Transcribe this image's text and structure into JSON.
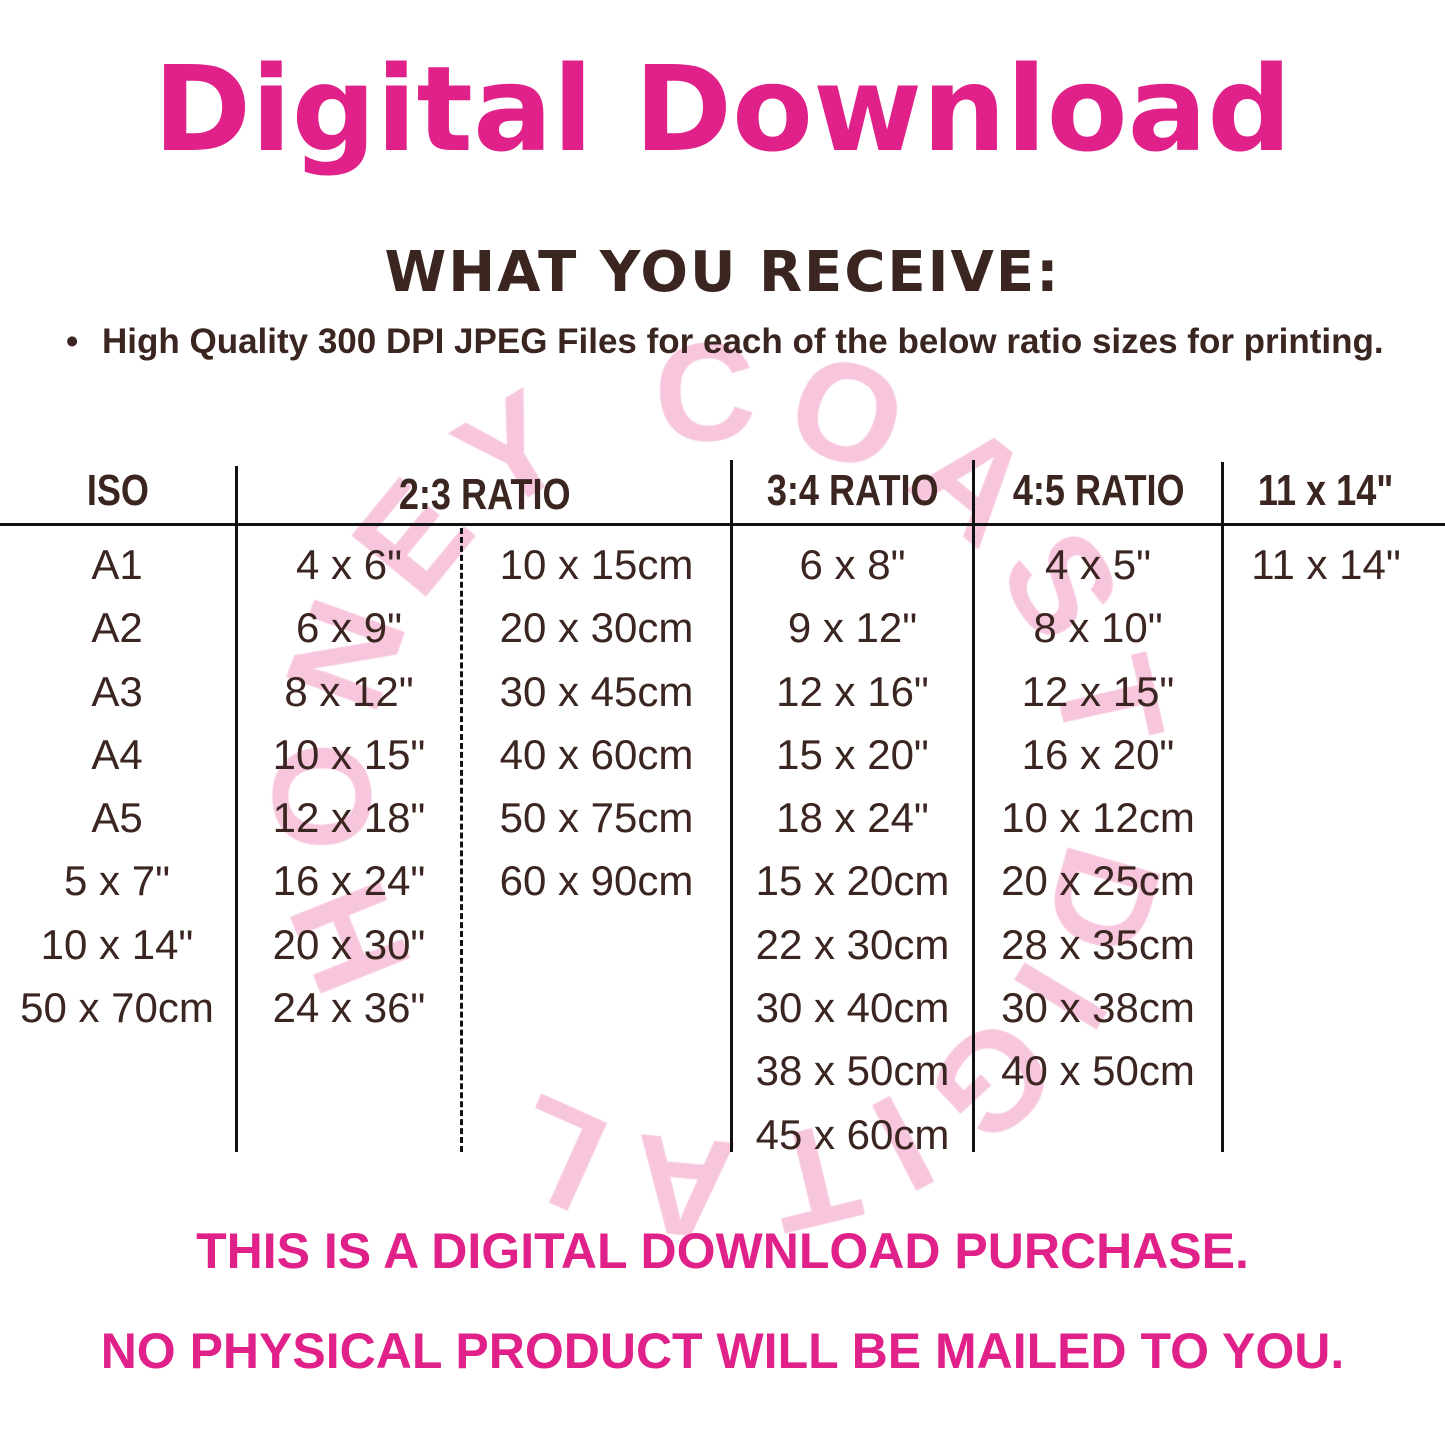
{
  "title": "Digital Download",
  "subtitle": "WHAT YOU RECEIVE:",
  "bullet": {
    "marker": "•",
    "text": "High Quality 300 DPI JPEG Files for each of the below ratio sizes for printing."
  },
  "watermark": {
    "text": "HONEY COAST DIGITAL",
    "color": "#f7c6dd"
  },
  "colors": {
    "accent": "#e0218a",
    "text": "#3a2520"
  },
  "table": {
    "headers": {
      "iso": "ISO",
      "ratio_2_3": "2:3 RATIO",
      "ratio_3_4": "3:4 RATIO",
      "ratio_4_5": "4:5 RATIO",
      "size_11x14": "11 x 14\""
    },
    "columns": {
      "iso": [
        "A1",
        "A2",
        "A3",
        "A4",
        "A5",
        "5 x 7\"",
        "10 x 14\"",
        "50 x 70cm"
      ],
      "ratio_2_3_inch": [
        "4 x 6\"",
        "6 x 9\"",
        "8 x 12\"",
        "10 x 15\"",
        "12 x 18\"",
        "16 x 24\"",
        "20 x 30\"",
        "24 x 36\""
      ],
      "ratio_2_3_cm": [
        "10 x 15cm",
        "20 x 30cm",
        "30 x 45cm",
        "40 x 60cm",
        "50 x 75cm",
        "60 x 90cm"
      ],
      "ratio_3_4": [
        "6 x 8\"",
        "9 x 12\"",
        "12 x 16\"",
        "15 x 20\"",
        "18 x 24\"",
        "15 x 20cm",
        "22 x 30cm",
        "30 x 40cm",
        "38 x 50cm",
        "45 x 60cm"
      ],
      "ratio_4_5": [
        "4 x 5\"",
        "8 x 10\"",
        "12 x 15\"",
        "16 x 20\"",
        "10 x 12cm",
        "20 x 25cm",
        "28 x 35cm",
        "30 x 38cm",
        "40 x 50cm"
      ],
      "size_11x14": [
        "11 x 14\""
      ]
    }
  },
  "footer": {
    "line1": "THIS IS A DIGITAL DOWNLOAD PURCHASE.",
    "line2": "NO PHYSICAL PRODUCT WILL BE MAILED TO YOU."
  }
}
